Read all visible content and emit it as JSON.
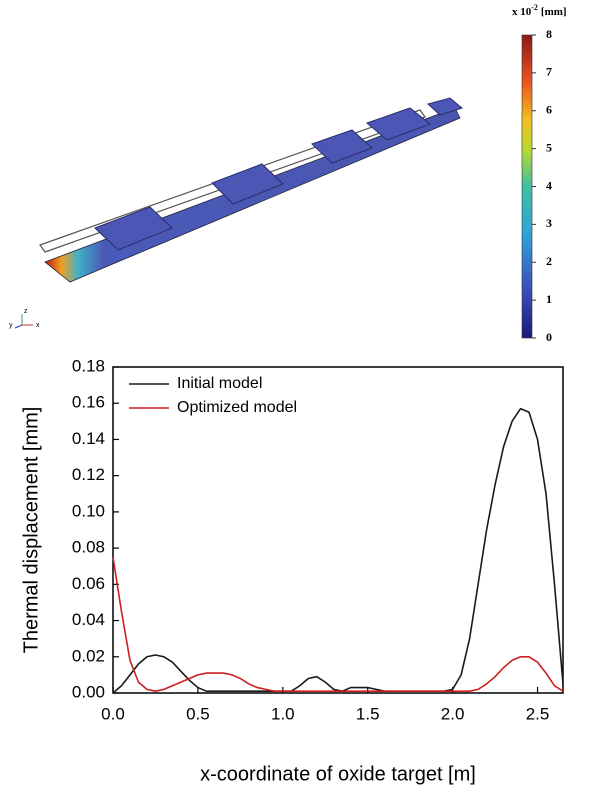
{
  "colorbar": {
    "title_base": "x 10",
    "title_exponent": "-2",
    "title_unit": "[mm]",
    "ticks": [
      0,
      1,
      2,
      3,
      4,
      5,
      6,
      7,
      8
    ]
  },
  "axis_triad": {
    "labels": [
      "y",
      "z",
      "x"
    ]
  },
  "chart_data": {
    "type": "line",
    "xlabel": "x-coordinate of oxide target [m]",
    "ylabel": "Thermal displacement [mm]",
    "xlim": [
      0,
      2.65
    ],
    "ylim": [
      0,
      0.18
    ],
    "xticks": [
      {
        "value": 0,
        "label": "0.0"
      },
      0.5,
      {
        "value": 1,
        "label": "1.0"
      },
      1.5,
      {
        "value": 2,
        "label": "2.0"
      },
      2.5
    ],
    "yticks": [
      {
        "value": 0,
        "label": "0.00"
      },
      0.02,
      0.04,
      0.06,
      0.08,
      {
        "value": 0.1,
        "label": "0.10"
      },
      0.12,
      0.14,
      0.16,
      0.18
    ],
    "legend": "upper left",
    "x": [
      0,
      0.05,
      0.1,
      0.15,
      0.2,
      0.25,
      0.3,
      0.35,
      0.4,
      0.45,
      0.5,
      0.55,
      0.6,
      0.65,
      0.7,
      0.75,
      0.8,
      0.85,
      0.9,
      0.95,
      1.0,
      1.05,
      1.1,
      1.15,
      1.2,
      1.25,
      1.3,
      1.35,
      1.4,
      1.45,
      1.5,
      1.55,
      1.6,
      1.65,
      1.7,
      1.75,
      1.8,
      1.85,
      1.9,
      1.95,
      2.0,
      2.05,
      2.1,
      2.15,
      2.2,
      2.25,
      2.3,
      2.35,
      2.4,
      2.45,
      2.5,
      2.55,
      2.6,
      2.65
    ],
    "series": [
      {
        "name": "Initial model",
        "color": "#1a1a1a",
        "values": [
          0,
          0.004,
          0.01,
          0.016,
          0.02,
          0.021,
          0.02,
          0.017,
          0.012,
          0.007,
          0.003,
          0.001,
          0.001,
          0.001,
          0.001,
          0.001,
          0.001,
          0.001,
          0.001,
          0.001,
          0.001,
          0.001,
          0.004,
          0.008,
          0.009,
          0.006,
          0.002,
          0.001,
          0.003,
          0.003,
          0.003,
          0.002,
          0.001,
          0.001,
          0.001,
          0.001,
          0.001,
          0.001,
          0.001,
          0.001,
          0.002,
          0.01,
          0.03,
          0.06,
          0.09,
          0.115,
          0.136,
          0.15,
          0.157,
          0.155,
          0.14,
          0.11,
          0.06,
          0.005
        ]
      },
      {
        "name": "Optimized model",
        "color": "#cc1f1f",
        "values": [
          0.075,
          0.045,
          0.018,
          0.006,
          0.002,
          0.001,
          0.002,
          0.004,
          0.006,
          0.008,
          0.01,
          0.011,
          0.011,
          0.011,
          0.01,
          0.008,
          0.005,
          0.003,
          0.002,
          0.001,
          0.001,
          0.001,
          0.001,
          0.001,
          0.001,
          0.001,
          0.001,
          0.001,
          0.001,
          0.001,
          0.001,
          0.001,
          0.001,
          0.001,
          0.001,
          0.001,
          0.001,
          0.001,
          0.001,
          0.001,
          0.001,
          0.001,
          0.001,
          0.002,
          0.005,
          0.009,
          0.014,
          0.018,
          0.02,
          0.02,
          0.017,
          0.011,
          0.004,
          0.001
        ]
      }
    ]
  }
}
